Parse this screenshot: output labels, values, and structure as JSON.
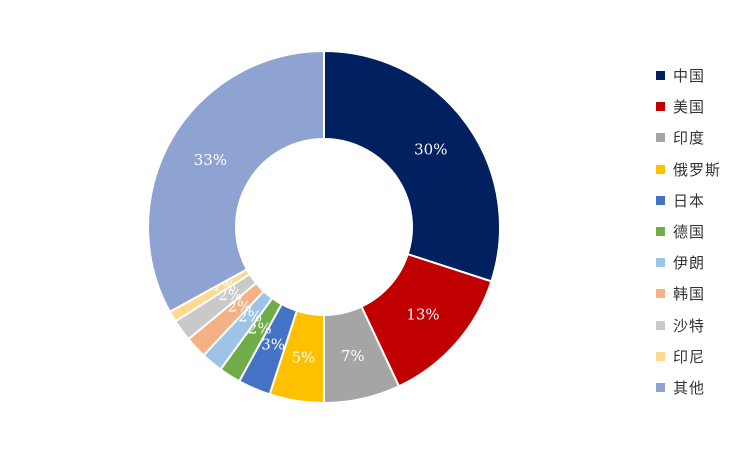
{
  "chart_data": {
    "type": "donut",
    "categories": [
      "中国",
      "美国",
      "印度",
      "俄罗斯",
      "日本",
      "德国",
      "伊朗",
      "韩国",
      "沙特",
      "印尼",
      "其他"
    ],
    "values": [
      30,
      13,
      7,
      5,
      3,
      2,
      2,
      2,
      2,
      1,
      33
    ],
    "data_labels": [
      "30%",
      "13%",
      "7%",
      "5%",
      "3%",
      "2%",
      "2%",
      "2%",
      "2%",
      "1%",
      "33%"
    ],
    "colors": [
      "#002060",
      "#C00000",
      "#A5A5A5",
      "#FFC000",
      "#4472C4",
      "#70AD47",
      "#9DC3E6",
      "#F4B183",
      "#C9C9C9",
      "#FFD98F",
      "#8FA3D3"
    ],
    "legend_position": "right",
    "title": "",
    "grid": false
  }
}
